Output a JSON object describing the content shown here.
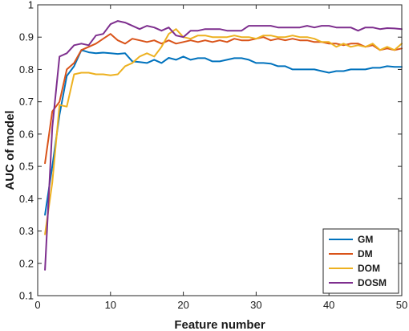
{
  "chart_data": {
    "type": "line",
    "title": "",
    "xlabel": "Feature number",
    "ylabel": "AUC of model",
    "xlim": [
      0,
      50
    ],
    "ylim": [
      0.1,
      1
    ],
    "xticks": [
      0,
      10,
      20,
      30,
      40,
      50
    ],
    "yticks": [
      0.1,
      0.2,
      0.3,
      0.4,
      0.5,
      0.6,
      0.7,
      0.8,
      0.9,
      1
    ],
    "ytick_labels": [
      "0.1",
      "0.2",
      "0.3",
      "0.4",
      "0.5",
      "0.6",
      "0.7",
      "0.8",
      "0.9",
      "1"
    ],
    "grid": false,
    "legend_position": "bottom-right",
    "x": [
      1,
      2,
      3,
      4,
      5,
      6,
      7,
      8,
      9,
      10,
      11,
      12,
      13,
      14,
      15,
      16,
      17,
      18,
      19,
      20,
      21,
      22,
      23,
      24,
      25,
      26,
      27,
      28,
      29,
      30,
      31,
      32,
      33,
      34,
      35,
      36,
      37,
      38,
      39,
      40,
      41,
      42,
      43,
      44,
      45,
      46,
      47,
      48,
      49,
      50
    ],
    "series": [
      {
        "name": "GM",
        "color": "#0072BD",
        "values": [
          0.35,
          0.5,
          0.66,
          0.78,
          0.81,
          0.86,
          0.853,
          0.85,
          0.852,
          0.85,
          0.848,
          0.85,
          0.825,
          0.823,
          0.82,
          0.83,
          0.82,
          0.836,
          0.83,
          0.84,
          0.83,
          0.835,
          0.835,
          0.825,
          0.825,
          0.83,
          0.835,
          0.835,
          0.83,
          0.82,
          0.82,
          0.818,
          0.81,
          0.81,
          0.8,
          0.8,
          0.8,
          0.8,
          0.795,
          0.79,
          0.795,
          0.795,
          0.8,
          0.8,
          0.8,
          0.805,
          0.805,
          0.81,
          0.808,
          0.808
        ]
      },
      {
        "name": "DM",
        "color": "#D95319",
        "values": [
          0.51,
          0.67,
          0.7,
          0.8,
          0.82,
          0.86,
          0.87,
          0.88,
          0.895,
          0.91,
          0.89,
          0.88,
          0.895,
          0.89,
          0.885,
          0.89,
          0.88,
          0.89,
          0.88,
          0.885,
          0.89,
          0.885,
          0.89,
          0.885,
          0.89,
          0.885,
          0.895,
          0.89,
          0.89,
          0.895,
          0.9,
          0.89,
          0.895,
          0.89,
          0.895,
          0.89,
          0.89,
          0.885,
          0.885,
          0.88,
          0.88,
          0.875,
          0.88,
          0.88,
          0.87,
          0.875,
          0.86,
          0.865,
          0.86,
          0.865
        ]
      },
      {
        "name": "DOM",
        "color": "#EDB120",
        "values": [
          0.29,
          0.45,
          0.69,
          0.685,
          0.785,
          0.79,
          0.79,
          0.785,
          0.785,
          0.782,
          0.785,
          0.81,
          0.82,
          0.84,
          0.85,
          0.84,
          0.87,
          0.91,
          0.925,
          0.9,
          0.895,
          0.905,
          0.905,
          0.9,
          0.9,
          0.9,
          0.905,
          0.9,
          0.9,
          0.895,
          0.905,
          0.905,
          0.9,
          0.9,
          0.905,
          0.9,
          0.9,
          0.895,
          0.885,
          0.885,
          0.87,
          0.88,
          0.87,
          0.875,
          0.87,
          0.88,
          0.86,
          0.87,
          0.86,
          0.88
        ]
      },
      {
        "name": "DOSM",
        "color": "#7E2F8E",
        "values": [
          0.18,
          0.62,
          0.84,
          0.85,
          0.875,
          0.88,
          0.875,
          0.905,
          0.91,
          0.94,
          0.95,
          0.945,
          0.935,
          0.925,
          0.935,
          0.93,
          0.92,
          0.93,
          0.905,
          0.9,
          0.92,
          0.92,
          0.925,
          0.925,
          0.925,
          0.92,
          0.92,
          0.92,
          0.935,
          0.935,
          0.935,
          0.935,
          0.93,
          0.93,
          0.93,
          0.93,
          0.935,
          0.93,
          0.935,
          0.935,
          0.93,
          0.93,
          0.93,
          0.92,
          0.93,
          0.93,
          0.925,
          0.928,
          0.927,
          0.925
        ]
      }
    ]
  }
}
